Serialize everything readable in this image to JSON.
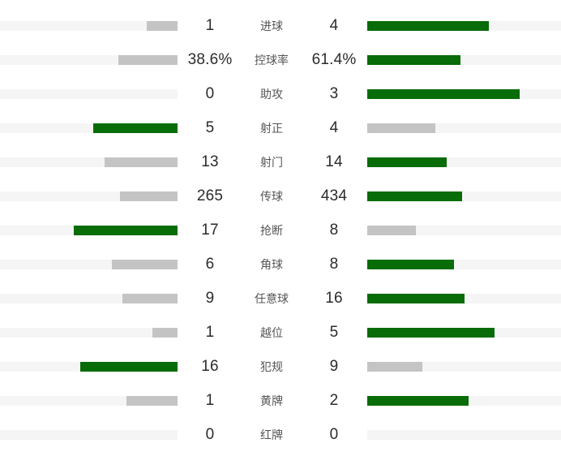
{
  "page": {
    "background": "#ffffff"
  },
  "chart_data": {
    "type": "bar",
    "subtype": "diverging-horizontal-stat-comparison",
    "title": "",
    "legend": [],
    "colors": {
      "leader_bar": "#086c08",
      "trailer_bar": "#c4c4c4",
      "track": "#f5f5f5",
      "value_text": "#2b2b2b",
      "label_text": "#555555"
    },
    "layout_hints": {
      "home_side": "left",
      "away_side": "right",
      "bar_scale": "bar width proportional to value share of row total (left+right)",
      "leader_color_rule": "higher value of the pair is dark green, lower is gray, zero shows empty track"
    },
    "rows": [
      {
        "label": "进球",
        "home": "1",
        "away": "4",
        "home_value": 1,
        "away_value": 4
      },
      {
        "label": "控球率",
        "home": "38.6%",
        "away": "61.4%",
        "home_value": 38.6,
        "away_value": 61.4
      },
      {
        "label": "助攻",
        "home": "0",
        "away": "3",
        "home_value": 0,
        "away_value": 3
      },
      {
        "label": "射正",
        "home": "5",
        "away": "4",
        "home_value": 5,
        "away_value": 4
      },
      {
        "label": "射门",
        "home": "13",
        "away": "14",
        "home_value": 13,
        "away_value": 14
      },
      {
        "label": "传球",
        "home": "265",
        "away": "434",
        "home_value": 265,
        "away_value": 434
      },
      {
        "label": "抢断",
        "home": "17",
        "away": "8",
        "home_value": 17,
        "away_value": 8
      },
      {
        "label": "角球",
        "home": "6",
        "away": "8",
        "home_value": 6,
        "away_value": 8
      },
      {
        "label": "任意球",
        "home": "9",
        "away": "16",
        "home_value": 9,
        "away_value": 16
      },
      {
        "label": "越位",
        "home": "1",
        "away": "5",
        "home_value": 1,
        "away_value": 5
      },
      {
        "label": "犯规",
        "home": "16",
        "away": "9",
        "home_value": 16,
        "away_value": 9
      },
      {
        "label": "黄牌",
        "home": "1",
        "away": "2",
        "home_value": 1,
        "away_value": 2
      },
      {
        "label": "红牌",
        "home": "0",
        "away": "0",
        "home_value": 0,
        "away_value": 0
      }
    ]
  }
}
